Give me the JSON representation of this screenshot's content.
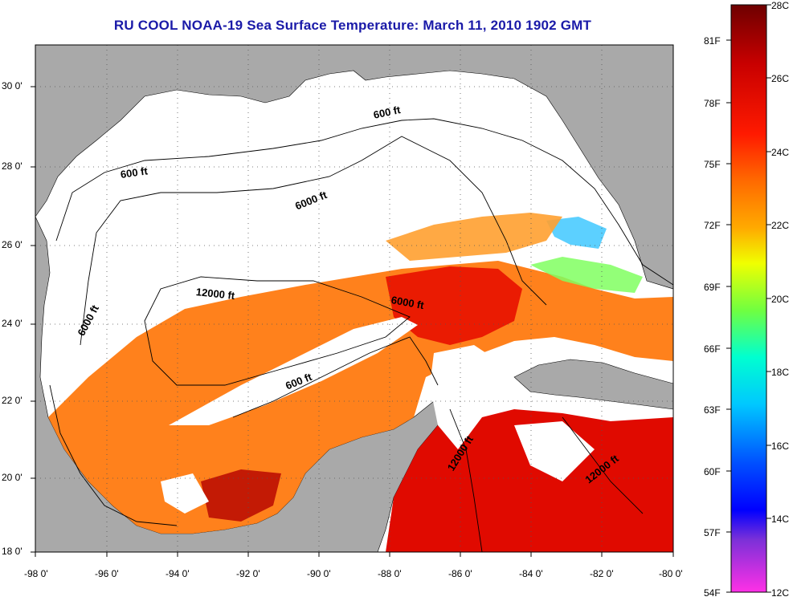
{
  "title": "RU COOL  NOAA-19  Sea Surface Temperature:  March 11, 2010 1902 GMT",
  "map": {
    "lon_ticks": [
      "-98 0'",
      "-96 0'",
      "-94 0'",
      "-92 0'",
      "-90 0'",
      "-88 0'",
      "-86 0'",
      "-84 0'",
      "-82 0'",
      "-80 0'"
    ],
    "lat_ticks": [
      "30 0'",
      "28 0'",
      "26 0'",
      "24 0'",
      "22 0'",
      "20 0'",
      "18 0'"
    ],
    "land_color": "#a9a9a9",
    "no_data_color": "#ffffff",
    "contour_labels": [
      "600 ft",
      "600 ft",
      "6000 ft",
      "12000 ft",
      "6000 ft",
      "6000 ft",
      "600 ft",
      "12000 ft",
      "12000 ft"
    ]
  },
  "colorbar": {
    "celsius_labels": [
      "28C",
      "26C",
      "24C",
      "22C",
      "20C",
      "18C",
      "16C",
      "14C",
      "12C"
    ],
    "fahrenheit_labels": [
      "81F",
      "78F",
      "75F",
      "72F",
      "69F",
      "66F",
      "63F",
      "60F",
      "57F",
      "54F"
    ],
    "colors": [
      "#7a0000",
      "#c80000",
      "#ff1a00",
      "#ff6a00",
      "#ffa500",
      "#ffd500",
      "#e6ff00",
      "#8cff3c",
      "#2cffb0",
      "#00e6ff",
      "#0096ff",
      "#0030ff",
      "#0000ff",
      "#7a2cd4",
      "#ff30e6"
    ]
  }
}
